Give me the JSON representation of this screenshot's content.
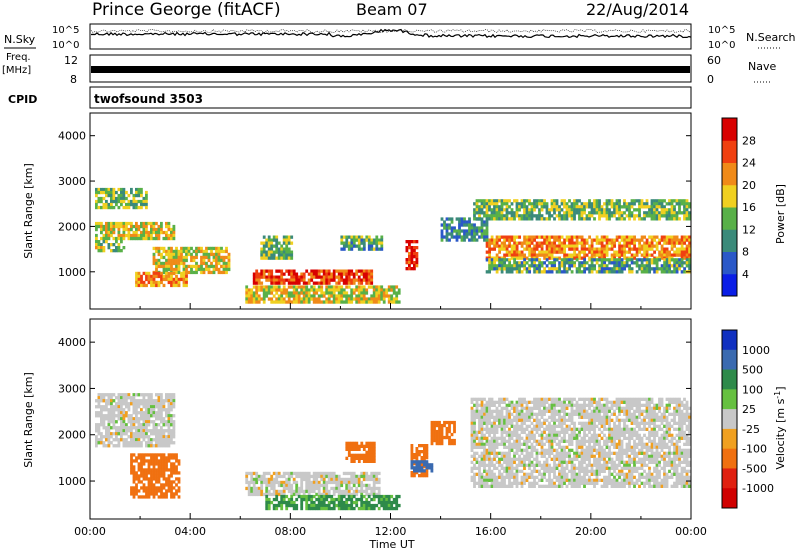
{
  "header": {
    "station": "Prince George (fitACF)",
    "beam": "Beam 07",
    "date": "22/Aug/2014"
  },
  "top_panels": {
    "nsky_label": "N.Sky",
    "nsearch_label": "N.Search",
    "noise_ticks": [
      "10^5",
      "10^0"
    ],
    "freq_label": "Freq.",
    "freq_unit": "[MHz]",
    "freq_ticks": [
      "12",
      "8"
    ],
    "nave_label": "Nave",
    "nave_ticks": [
      "60",
      "0"
    ],
    "cpid_label": "CPID",
    "cpid_value": "twofsound 3503"
  },
  "chart_data": [
    {
      "type": "heatmap",
      "name": "power",
      "ylabel": "Slant Range [km]",
      "ylim": [
        180,
        4500
      ],
      "yticks": [
        "1000",
        "2000",
        "3000",
        "4000"
      ],
      "ytick_values": [
        1000,
        2000,
        3000,
        4000
      ],
      "xlim_hours": [
        0,
        24
      ],
      "colorbar_label": "Power [dB]",
      "colorbar_ticks": [
        "4",
        "8",
        "12",
        "16",
        "20",
        "24",
        "28"
      ],
      "colorbar_tick_values": [
        4,
        8,
        12,
        16,
        20,
        24,
        28
      ],
      "colorbar_range": [
        0,
        32
      ],
      "colorbar_colors": [
        "#0a1ee6",
        "#2a58c8",
        "#3a8a7a",
        "#58b048",
        "#f0d020",
        "#f08a18",
        "#f04010",
        "#d80000"
      ],
      "echo_regions": [
        {
          "t": [
            0.2,
            2.2
          ],
          "range": [
            2450,
            2850
          ],
          "power": 14
        },
        {
          "t": [
            0.2,
            3.3
          ],
          "range": [
            1750,
            2100
          ],
          "power": 18
        },
        {
          "t": [
            0.2,
            1.3
          ],
          "range": [
            1450,
            1700
          ],
          "power": 15
        },
        {
          "t": [
            2.5,
            5.5
          ],
          "range": [
            1000,
            1550
          ],
          "power": 18
        },
        {
          "t": [
            1.8,
            3.8
          ],
          "range": [
            700,
            1000
          ],
          "power": 22
        },
        {
          "t": [
            6.5,
            11.2
          ],
          "range": [
            750,
            1050
          ],
          "power": 27
        },
        {
          "t": [
            6.2,
            12.3
          ],
          "range": [
            350,
            700
          ],
          "power": 18
        },
        {
          "t": [
            6.8,
            8.0
          ],
          "range": [
            1300,
            1800
          ],
          "power": 14
        },
        {
          "t": [
            10.0,
            11.6
          ],
          "range": [
            1500,
            1800
          ],
          "power": 12
        },
        {
          "t": [
            12.6,
            13.0
          ],
          "range": [
            1050,
            1700
          ],
          "power": 29
        },
        {
          "t": [
            15.3,
            23.9
          ],
          "range": [
            2200,
            2600
          ],
          "power": 14
        },
        {
          "t": [
            15.8,
            23.9
          ],
          "range": [
            1300,
            1800
          ],
          "power": 22
        },
        {
          "t": [
            15.8,
            23.9
          ],
          "range": [
            1000,
            1300
          ],
          "power": 12
        },
        {
          "t": [
            14.0,
            15.8
          ],
          "range": [
            1700,
            2200
          ],
          "power": 10
        }
      ]
    },
    {
      "type": "heatmap",
      "name": "velocity",
      "ylabel": "Slant Range [km]",
      "ylim": [
        180,
        4500
      ],
      "yticks": [
        "1000",
        "2000",
        "3000",
        "4000"
      ],
      "ytick_values": [
        1000,
        2000,
        3000,
        4000
      ],
      "xlabel": "Time UT",
      "xticks": [
        "00:00",
        "04:00",
        "08:00",
        "12:00",
        "16:00",
        "20:00",
        "00:00"
      ],
      "xtick_values": [
        0,
        4,
        8,
        12,
        16,
        20,
        24
      ],
      "colorbar_label": "Velocity [m s",
      "colorbar_superscript": "-1",
      "colorbar_ticks": [
        "1000",
        "500",
        "100",
        "25",
        "-25",
        "-100",
        "-500",
        "-1000"
      ],
      "colorbar_colors": [
        "#1030c0",
        "#3a6ab0",
        "#2e8a4a",
        "#66c040",
        "#c8c8c8",
        "#f0a020",
        "#f07010",
        "#e02010",
        "#d00000"
      ],
      "echo_regions": [
        {
          "t": [
            0.2,
            3.3
          ],
          "range": [
            1750,
            2900
          ],
          "velocity": 0
        },
        {
          "t": [
            1.6,
            3.5
          ],
          "range": [
            650,
            1600
          ],
          "velocity": -300
        },
        {
          "t": [
            6.2,
            11.5
          ],
          "range": [
            700,
            1200
          ],
          "velocity": 0
        },
        {
          "t": [
            7.0,
            12.3
          ],
          "range": [
            400,
            700
          ],
          "velocity": 60
        },
        {
          "t": [
            10.2,
            11.3
          ],
          "range": [
            1400,
            1850
          ],
          "velocity": -300
        },
        {
          "t": [
            12.8,
            13.4
          ],
          "range": [
            1100,
            1800
          ],
          "velocity": -300
        },
        {
          "t": [
            12.8,
            13.6
          ],
          "range": [
            1200,
            1450
          ],
          "velocity": 200
        },
        {
          "t": [
            13.6,
            14.5
          ],
          "range": [
            1800,
            2300
          ],
          "velocity": -300
        },
        {
          "t": [
            15.2,
            23.9
          ],
          "range": [
            900,
            2800
          ],
          "velocity": 0
        }
      ]
    }
  ]
}
